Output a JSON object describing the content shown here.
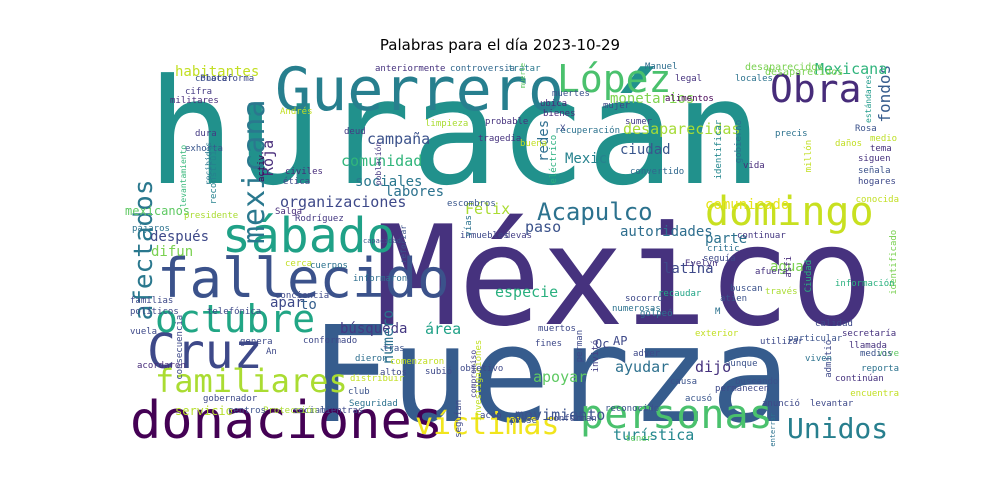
{
  "title": "Palabras para el día 2023-10-29",
  "colors": {
    "background": "#ffffff",
    "palette": "viridis"
  },
  "words": [
    {
      "text": "huracán"
    },
    {
      "text": "México"
    },
    {
      "text": "Fuerza"
    },
    {
      "text": "Guerrero"
    },
    {
      "text": "donaciones"
    },
    {
      "text": "fallecido"
    },
    {
      "text": "sábado"
    },
    {
      "text": "domingo"
    },
    {
      "text": "personas"
    },
    {
      "text": "Cruz"
    },
    {
      "text": "octubre"
    },
    {
      "text": "López"
    },
    {
      "text": "Obra"
    },
    {
      "text": "mexicana"
    },
    {
      "text": "afectados"
    },
    {
      "text": "familiares"
    },
    {
      "text": "víctimas"
    },
    {
      "text": "Unidos"
    },
    {
      "text": "Acapulco"
    },
    {
      "text": "organizaciones"
    },
    {
      "text": "comunidad"
    },
    {
      "text": "campaña"
    },
    {
      "text": "sociales"
    },
    {
      "text": "labores"
    },
    {
      "text": "desaparecidas"
    },
    {
      "text": "ciudad"
    },
    {
      "text": "fondos"
    },
    {
      "text": "Mexicana"
    },
    {
      "text": "monetarios"
    },
    {
      "text": "habitantes"
    },
    {
      "text": "autoridades"
    },
    {
      "text": "especie"
    },
    {
      "text": "búsqueda"
    },
    {
      "text": "movimiento"
    },
    {
      "text": "apoyar"
    },
    {
      "text": "ayudar"
    },
    {
      "text": "dijo"
    },
    {
      "text": "turística"
    },
    {
      "text": "latina"
    },
    {
      "text": "parte"
    },
    {
      "text": "agua"
    },
    {
      "text": "comunicado"
    },
    {
      "text": "después"
    },
    {
      "text": "difun"
    },
    {
      "text": "Félix"
    },
    {
      "text": "paso"
    },
    {
      "text": "Roja"
    },
    {
      "text": "número"
    },
    {
      "text": "área"
    },
    {
      "text": "mexicanos"
    },
    {
      "text": "servicio"
    },
    {
      "text": "desaparecidos"
    },
    {
      "text": "redes"
    },
    {
      "text": "Mexic"
    },
    {
      "text": "apar"
    },
    {
      "text": "to"
    },
    {
      "text": "AP"
    },
    {
      "text": "Oc"
    },
    {
      "text": "desaparecidos"
    },
    {
      "text": "conocer"
    },
    {
      "text": "cifra"
    },
    {
      "text": "militares"
    },
    {
      "text": "anteriormente"
    },
    {
      "text": "controversia"
    },
    {
      "text": "tratar"
    },
    {
      "text": "muerte"
    },
    {
      "text": "Manuel"
    },
    {
      "text": "legal"
    },
    {
      "text": "locales"
    },
    {
      "text": "estándares"
    },
    {
      "text": "Andrés"
    },
    {
      "text": "dura"
    },
    {
      "text": "exhorta"
    },
    {
      "text": "reconstruir"
    },
    {
      "text": "recibidos"
    },
    {
      "text": "levantamiento"
    },
    {
      "text": "activ"
    },
    {
      "text": "civiles"
    },
    {
      "text": "ética"
    },
    {
      "text": "deud"
    },
    {
      "text": "población"
    },
    {
      "text": "limpieza"
    },
    {
      "text": "probable"
    },
    {
      "text": "tragedia"
    },
    {
      "text": "bienes"
    },
    {
      "text": "recuperación"
    },
    {
      "text": "buena"
    },
    {
      "text": "eléctrico"
    },
    {
      "text": "convertido"
    },
    {
      "text": "ubica"
    },
    {
      "text": "muertes"
    },
    {
      "text": "mujer"
    },
    {
      "text": "alimentos"
    },
    {
      "text": "identificar"
    },
    {
      "text": "gobierno"
    },
    {
      "text": "sumer"
    },
    {
      "text": "precis"
    },
    {
      "text": "Rosa"
    },
    {
      "text": "medio"
    },
    {
      "text": "tema"
    },
    {
      "text": "daños"
    },
    {
      "text": "siguen"
    },
    {
      "text": "señala"
    },
    {
      "text": "hogares"
    },
    {
      "text": "millón"
    },
    {
      "text": "vida"
    },
    {
      "text": "conocida"
    },
    {
      "text": "presidente"
    },
    {
      "text": "Salga"
    },
    {
      "text": "Rodríguez"
    },
    {
      "text": "capacidad"
    },
    {
      "text": "escombros"
    },
    {
      "text": "inmuebles"
    },
    {
      "text": "devas"
    },
    {
      "text": "continuar"
    },
    {
      "text": "critic"
    },
    {
      "text": "seguía"
    },
    {
      "text": "Evelyn"
    },
    {
      "text": "afuera"
    },
    {
      "text": "asfi"
    },
    {
      "text": "Ciudad"
    },
    {
      "text": "identificado"
    },
    {
      "text": "información"
    },
    {
      "text": "través"
    },
    {
      "text": "numerosas"
    },
    {
      "text": "socorro"
    },
    {
      "text": "atien"
    },
    {
      "text": "buscan"
    },
    {
      "text": "recaudar"
    },
    {
      "text": "golpeó"
    },
    {
      "text": "muertos"
    },
    {
      "text": "perman"
    },
    {
      "text": "invitó"
    },
    {
      "text": "exterior"
    },
    {
      "text": "utilizar"
    },
    {
      "text": "particular"
    },
    {
      "text": "calidad"
    },
    {
      "text": "secretaría"
    },
    {
      "text": "llamada"
    },
    {
      "text": "admitió"
    },
    {
      "text": "vive"
    },
    {
      "text": "viven"
    },
    {
      "text": "medios"
    },
    {
      "text": "reporta"
    },
    {
      "text": "continúan"
    },
    {
      "text": "encuentra"
    },
    {
      "text": "adver"
    },
    {
      "text": "buscando"
    },
    {
      "text": "aunque"
    },
    {
      "text": "causa"
    },
    {
      "text": "permanecen"
    },
    {
      "text": "acusó"
    },
    {
      "text": "anunció"
    },
    {
      "text": "levantar"
    },
    {
      "text": "enterrar"
    },
    {
      "text": "tener"
    },
    {
      "text": "reconocido"
    },
    {
      "text": "conforman"
    },
    {
      "text": "prose"
    },
    {
      "text": "acop"
    },
    {
      "text": "seguían"
    },
    {
      "text": "investigaciones"
    },
    {
      "text": "compromiso"
    },
    {
      "text": "subió"
    },
    {
      "text": "club"
    },
    {
      "text": "distribuir"
    },
    {
      "text": "Seguridad"
    },
    {
      "text": "mientras"
    },
    {
      "text": "social"
    },
    {
      "text": "Protección"
    },
    {
      "text": "centros"
    },
    {
      "text": "gobernador"
    },
    {
      "text": "acordaron"
    },
    {
      "text": "genera"
    },
    {
      "text": "An"
    },
    {
      "text": "vuela"
    },
    {
      "text": "familias"
    },
    {
      "text": "políticos"
    },
    {
      "text": "telefónica"
    },
    {
      "text": "consecuencia"
    },
    {
      "text": "conciencia"
    },
    {
      "text": "cerca"
    },
    {
      "text": "cuerpos"
    },
    {
      "text": "informaron"
    },
    {
      "text": "conformado"
    },
    {
      "text": "comenzaron"
    },
    {
      "text": "tras"
    },
    {
      "text": "altos"
    },
    {
      "text": "dieron"
    },
    {
      "text": "reforzar"
    },
    {
      "text": "vías"
    },
    {
      "text": "fines"
    },
    {
      "text": "objetivo"
    },
    {
      "text": "Plataforma"
    },
    {
      "text": "pájaros"
    },
    {
      "text": "M"
    },
    {
      "text": "X"
    },
    {
      "text": "W"
    },
    {
      "text": "T"
    },
    {
      "text": "I"
    },
    {
      "text": "t"
    }
  ]
}
